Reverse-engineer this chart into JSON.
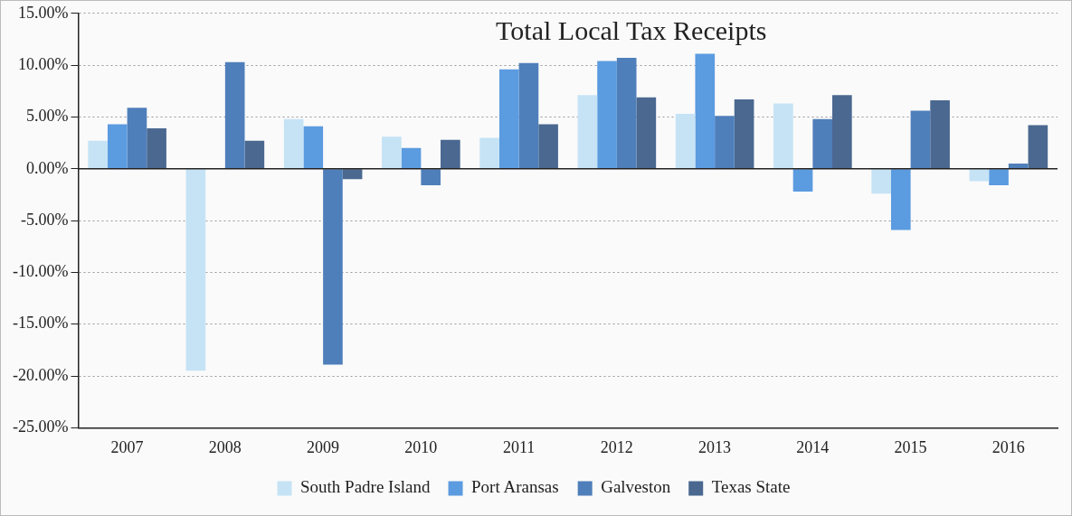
{
  "chart_data": {
    "type": "bar",
    "title": "Total Local Tax Receipts",
    "categories": [
      "2007",
      "2008",
      "2009",
      "2010",
      "2011",
      "2012",
      "2013",
      "2014",
      "2015",
      "2016"
    ],
    "series": [
      {
        "name": "South Padre Island",
        "color": "#c5e3f5",
        "values": [
          2.7,
          -19.5,
          4.8,
          3.1,
          3.0,
          7.1,
          5.3,
          6.3,
          -2.4,
          -1.2
        ]
      },
      {
        "name": "Port Aransas",
        "color": "#5b9be0",
        "values": [
          4.3,
          0,
          4.1,
          2.0,
          9.6,
          10.4,
          11.1,
          -2.2,
          -5.9,
          -1.6
        ]
      },
      {
        "name": "Galveston",
        "color": "#4f7fba",
        "values": [
          5.9,
          10.3,
          -18.9,
          -1.6,
          10.2,
          10.7,
          5.1,
          4.8,
          5.6,
          0.5
        ]
      },
      {
        "name": "Texas State",
        "color": "#4a6890",
        "values": [
          3.9,
          2.7,
          -1.0,
          2.8,
          4.3,
          6.9,
          6.7,
          7.1,
          6.6,
          4.2
        ]
      }
    ],
    "ylim": [
      -25,
      15
    ],
    "yticks": [
      {
        "value": -25,
        "label": "-25.00%"
      },
      {
        "value": -20,
        "label": "-20.00%"
      },
      {
        "value": -15,
        "label": "-15.00%"
      },
      {
        "value": -10,
        "label": "-10.00%"
      },
      {
        "value": -5,
        "label": "-5.00%"
      },
      {
        "value": 0,
        "label": "0.00%"
      },
      {
        "value": 5,
        "label": "5.00%"
      },
      {
        "value": 10,
        "label": "10.00%"
      },
      {
        "value": 15,
        "label": "15.00%"
      }
    ],
    "ref_lines": [
      {
        "axis": "y",
        "value": 0,
        "color": "#222222"
      }
    ],
    "grid": "y",
    "legend": "bottom"
  }
}
